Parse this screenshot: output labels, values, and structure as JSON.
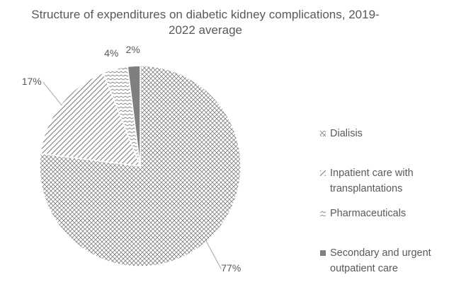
{
  "chart_data": {
    "type": "pie",
    "title": "Structure of expenditures on diabetic kidney complications, 2019-2022 average",
    "categories": [
      "Dialisis",
      "Inpatient care with transplantations",
      "Pharmaceuticals",
      "Secondary and urgent outpatient care"
    ],
    "values": [
      77,
      17,
      4,
      2
    ],
    "value_labels": [
      "77%",
      "17%",
      "4%",
      "2%"
    ],
    "colors": [
      "#7f7f7f",
      "#7f7f7f",
      "#7f7f7f",
      "#7f7f7f"
    ]
  }
}
